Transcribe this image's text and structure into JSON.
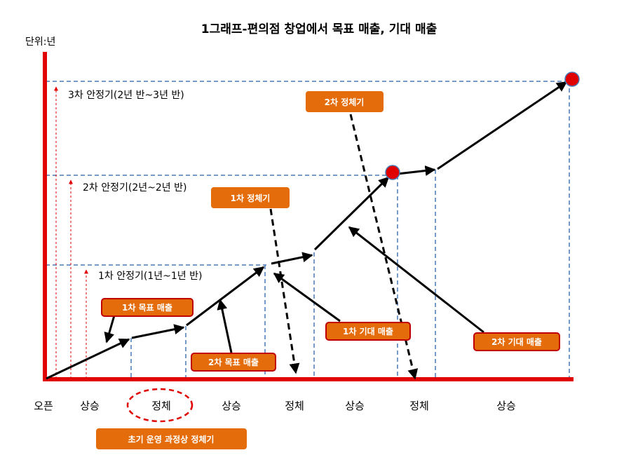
{
  "title": "1그래프-편의점 창업에서 목표 매출, 기대 매출",
  "unit_label": "단위:년",
  "colors": {
    "axis": "#e00000",
    "dashed_guide": "#4a7ab5",
    "callout_fill": "#e46c0a",
    "callout_border": "#c00000",
    "marker": "#e00000",
    "arrow": "#000000"
  },
  "phase_labels": {
    "first": "1차 안정기(1년~1년 반)",
    "second": "2차 안정기(2년~2년 반)",
    "third": "3차 안정기(2년 반~3년 반)"
  },
  "callouts": {
    "target1": "1차 목표 매출",
    "target2": "2차 목표 매출",
    "expected1": "1차 기대 매출",
    "expected2": "2차 기대 매출",
    "stagnation1": "1차 정체기",
    "stagnation2": "2차 정체기",
    "early": "초기 운영 과정상  정체기"
  },
  "bottom_labels": [
    "오픈",
    "상승",
    "정체",
    "상승",
    "정체",
    "상승",
    "정체",
    "상승"
  ]
}
